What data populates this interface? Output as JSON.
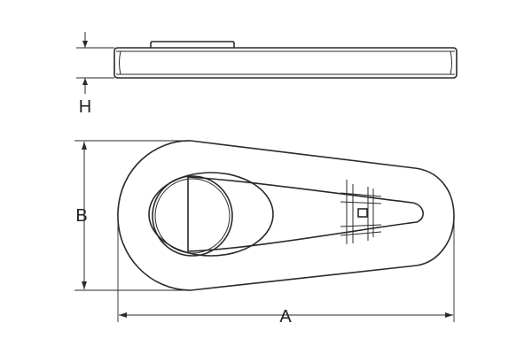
{
  "dimensions": {
    "height_label": "H",
    "width_label": "B",
    "length_label": "A"
  },
  "colors": {
    "line": "#2a2a2a",
    "face_fill": "#ffffff",
    "background": "#ffffff"
  }
}
